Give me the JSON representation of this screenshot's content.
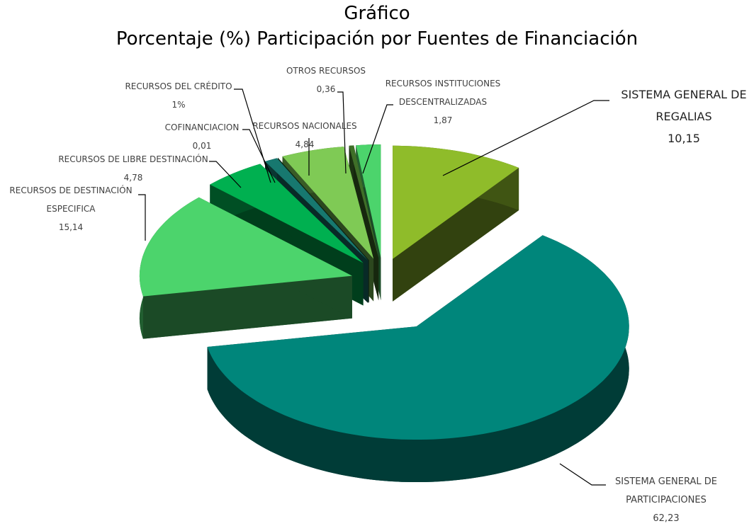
{
  "chart_data": {
    "type": "pie",
    "title": "Gráfico",
    "subtitle": "Porcentaje (%) Participación por Fuentes de Financiación",
    "categories": [
      "SISTEMA GENERAL DE REGALIAS",
      "SISTEMA GENERAL DE PARTICIPACIONES",
      "RECURSOS DE DESTINACIÓN ESPECIFICA",
      "RECURSOS DE LIBRE DESTINACIÓN",
      "RECURSOS DEL CRÉDITO",
      "COFINANCIACION",
      "RECURSOS NACIONALES",
      "OTROS RECURSOS",
      "RECURSOS INSTITUCIONES DESCENTRALIZADAS"
    ],
    "values": [
      10.15,
      62.23,
      15.14,
      4.78,
      1,
      0.01,
      4.84,
      0.36,
      1.87
    ],
    "value_labels": [
      "10,15",
      "62,23",
      "15,14",
      "4,78",
      "1%",
      "0,01",
      "4,84",
      "0,36",
      "1,87"
    ],
    "colors": [
      "#8fbc2a",
      "#00867b",
      "#4cd46c",
      "#00b050",
      "#17786f",
      "#2e6b3c",
      "#7fca55",
      "#3f6f28",
      "#4cd46c"
    ]
  }
}
